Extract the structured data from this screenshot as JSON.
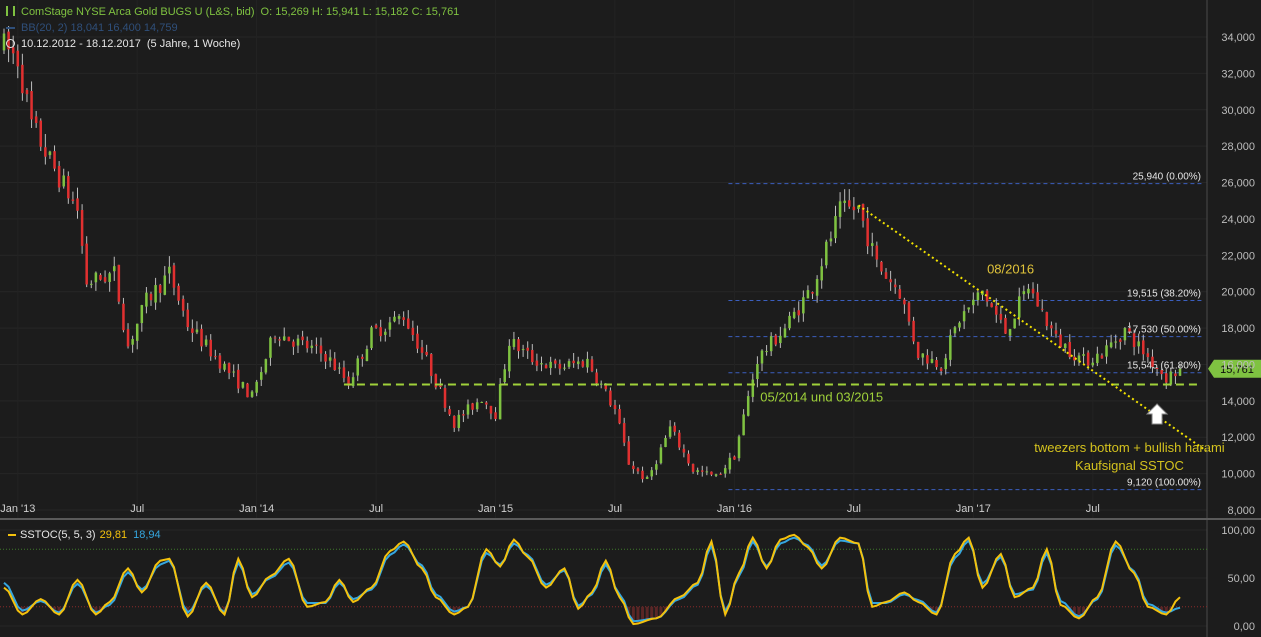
{
  "header": {
    "instrument": "ComStage NYSE Arca Gold BUGS U (L&S, bid)",
    "ohlc": "O: 15,269  H: 15,941  L: 15,182  C: 15,761",
    "bb": "BB(20, 2)  18,041  16,400  14,759",
    "range": "10.12.2012 - 18.12.2017",
    "period": "(5 Jahre, 1 Woche)"
  },
  "indicator": {
    "name": "SSTOC(5, 5, 3)",
    "k_value": "29,81",
    "d_value": "18,94",
    "levels": [
      80,
      20
    ],
    "ytick_labels": [
      "100,00",
      "50,00",
      "0,00"
    ]
  },
  "colors": {
    "bg": "#1c1c1c",
    "up": "#7fc241",
    "down": "#e03030",
    "fib": "#3b5fbf",
    "support": "#9fd13a",
    "trend": "#f2e200",
    "k_line": "#f4c20d",
    "d_line": "#35a7e0",
    "price_tag": "#7fc241"
  },
  "icons": [
    "bars-icon",
    "line-icon",
    "clock-icon",
    "up-arrow-icon"
  ],
  "chart_data": {
    "type": "candlestick",
    "ylim": [
      8000,
      35600
    ],
    "yticks": [
      8000,
      10000,
      12000,
      14000,
      16000,
      18000,
      20000,
      22000,
      24000,
      26000,
      28000,
      30000,
      32000,
      34000
    ],
    "ytick_labels": [
      "8,000",
      "10,000",
      "12,000",
      "14,000",
      "16,000",
      "18,000",
      "20,000",
      "22,000",
      "24,000",
      "26,000",
      "28,000",
      "30,000",
      "32,000",
      "34,000"
    ],
    "xticks": [
      {
        "label": "Jan '13",
        "week": 3
      },
      {
        "label": "Jul",
        "week": 29
      },
      {
        "label": "Jan '14",
        "week": 55
      },
      {
        "label": "Jul",
        "week": 81
      },
      {
        "label": "Jan '15",
        "week": 107
      },
      {
        "label": "Jul",
        "week": 133
      },
      {
        "label": "Jan '16",
        "week": 159
      },
      {
        "label": "Jul",
        "week": 185
      },
      {
        "label": "Jan '17",
        "week": 211
      },
      {
        "label": "Jul",
        "week": 237
      }
    ],
    "weeks_total": 262,
    "path": [
      [
        0,
        33500
      ],
      [
        3,
        32800
      ],
      [
        6,
        29200
      ],
      [
        10,
        27200
      ],
      [
        16,
        24500
      ],
      [
        18,
        20500
      ],
      [
        24,
        21000
      ],
      [
        27,
        17000
      ],
      [
        31,
        19500
      ],
      [
        36,
        21000
      ],
      [
        40,
        18200
      ],
      [
        44,
        17000
      ],
      [
        50,
        15300
      ],
      [
        54,
        14200
      ],
      [
        59,
        17800
      ],
      [
        64,
        17200
      ],
      [
        70,
        16500
      ],
      [
        75,
        15000
      ],
      [
        80,
        17700
      ],
      [
        87,
        18700
      ],
      [
        92,
        16200
      ],
      [
        98,
        12800
      ],
      [
        104,
        14200
      ],
      [
        107,
        13300
      ],
      [
        110,
        17300
      ],
      [
        115,
        16300
      ],
      [
        120,
        15800
      ],
      [
        127,
        16200
      ],
      [
        133,
        13500
      ],
      [
        136,
        10600
      ],
      [
        140,
        9600
      ],
      [
        145,
        12500
      ],
      [
        150,
        10200
      ],
      [
        155,
        9800
      ],
      [
        159,
        11000
      ],
      [
        164,
        16300
      ],
      [
        170,
        18000
      ],
      [
        176,
        20300
      ],
      [
        182,
        24400
      ],
      [
        186,
        24600
      ],
      [
        190,
        21500
      ],
      [
        195,
        20000
      ],
      [
        199,
        16600
      ],
      [
        204,
        16000
      ],
      [
        208,
        18500
      ],
      [
        213,
        20000
      ],
      [
        218,
        17800
      ],
      [
        223,
        20300
      ],
      [
        229,
        17400
      ],
      [
        235,
        16200
      ],
      [
        239,
        16600
      ],
      [
        244,
        17900
      ],
      [
        249,
        16400
      ],
      [
        253,
        15300
      ],
      [
        256,
        15700
      ]
    ],
    "last_close": 15761,
    "last_close_label": "15,761",
    "fib_levels": [
      {
        "value": 25940,
        "label": "25,940 (0.00%)"
      },
      {
        "value": 19515,
        "label": "19,515 (38.20%)"
      },
      {
        "value": 17530,
        "label": "17,530 (50.00%)"
      },
      {
        "value": 15545,
        "label": "15,545 (61.80%)"
      },
      {
        "value": 9120,
        "label": "9,120 (100.00%)"
      }
    ],
    "fib_start_week": 159,
    "support": {
      "value": 14900,
      "from_week": 74,
      "to_week": 260,
      "label": "05/2014 und 03/2015"
    },
    "trendline": {
      "from": [
        186,
        24750
      ],
      "to": [
        262,
        11200
      ],
      "label": "08/2016"
    },
    "annotations": [
      "tweezers bottom + bullish harami",
      "Kaufsignal SSTOC"
    ],
    "sstoc": {
      "k": [
        [
          0,
          40
        ],
        [
          4,
          12
        ],
        [
          8,
          28
        ],
        [
          12,
          12
        ],
        [
          16,
          48
        ],
        [
          20,
          12
        ],
        [
          23,
          25
        ],
        [
          27,
          60
        ],
        [
          30,
          35
        ],
        [
          34,
          68
        ],
        [
          36,
          70
        ],
        [
          40,
          10
        ],
        [
          44,
          45
        ],
        [
          48,
          12
        ],
        [
          51,
          70
        ],
        [
          54,
          30
        ],
        [
          58,
          52
        ],
        [
          62,
          70
        ],
        [
          66,
          20
        ],
        [
          70,
          25
        ],
        [
          73,
          48
        ],
        [
          76,
          25
        ],
        [
          80,
          40
        ],
        [
          84,
          78
        ],
        [
          87,
          88
        ],
        [
          91,
          60
        ],
        [
          94,
          30
        ],
        [
          98,
          12
        ],
        [
          101,
          20
        ],
        [
          105,
          80
        ],
        [
          108,
          62
        ],
        [
          111,
          90
        ],
        [
          114,
          72
        ],
        [
          118,
          40
        ],
        [
          122,
          60
        ],
        [
          125,
          18
        ],
        [
          128,
          35
        ],
        [
          131,
          68
        ],
        [
          134,
          30
        ],
        [
          137,
          2
        ],
        [
          142,
          8
        ],
        [
          147,
          30
        ],
        [
          151,
          45
        ],
        [
          154,
          88
        ],
        [
          157,
          12
        ],
        [
          160,
          55
        ],
        [
          163,
          92
        ],
        [
          166,
          60
        ],
        [
          169,
          90
        ],
        [
          172,
          95
        ],
        [
          175,
          82
        ],
        [
          178,
          60
        ],
        [
          182,
          92
        ],
        [
          186,
          86
        ],
        [
          189,
          20
        ],
        [
          192,
          25
        ],
        [
          196,
          35
        ],
        [
          199,
          25
        ],
        [
          203,
          12
        ],
        [
          207,
          75
        ],
        [
          210,
          92
        ],
        [
          213,
          40
        ],
        [
          217,
          75
        ],
        [
          220,
          30
        ],
        [
          224,
          40
        ],
        [
          227,
          80
        ],
        [
          230,
          22
        ],
        [
          234,
          8
        ],
        [
          238,
          30
        ],
        [
          242,
          88
        ],
        [
          246,
          55
        ],
        [
          249,
          20
        ],
        [
          253,
          12
        ],
        [
          256,
          30
        ]
      ],
      "d": [
        [
          0,
          45
        ],
        [
          4,
          16
        ],
        [
          8,
          26
        ],
        [
          12,
          14
        ],
        [
          16,
          44
        ],
        [
          20,
          14
        ],
        [
          23,
          22
        ],
        [
          27,
          56
        ],
        [
          30,
          38
        ],
        [
          34,
          64
        ],
        [
          36,
          68
        ],
        [
          40,
          14
        ],
        [
          44,
          42
        ],
        [
          48,
          14
        ],
        [
          51,
          66
        ],
        [
          54,
          33
        ],
        [
          58,
          50
        ],
        [
          62,
          66
        ],
        [
          66,
          24
        ],
        [
          70,
          24
        ],
        [
          73,
          45
        ],
        [
          76,
          28
        ],
        [
          80,
          38
        ],
        [
          84,
          74
        ],
        [
          87,
          85
        ],
        [
          91,
          63
        ],
        [
          94,
          33
        ],
        [
          98,
          15
        ],
        [
          101,
          20
        ],
        [
          105,
          76
        ],
        [
          108,
          64
        ],
        [
          111,
          86
        ],
        [
          114,
          74
        ],
        [
          118,
          43
        ],
        [
          122,
          58
        ],
        [
          125,
          21
        ],
        [
          128,
          33
        ],
        [
          131,
          64
        ],
        [
          134,
          33
        ],
        [
          137,
          5
        ],
        [
          142,
          8
        ],
        [
          147,
          28
        ],
        [
          151,
          43
        ],
        [
          154,
          84
        ],
        [
          157,
          15
        ],
        [
          160,
          52
        ],
        [
          163,
          88
        ],
        [
          166,
          62
        ],
        [
          169,
          86
        ],
        [
          172,
          92
        ],
        [
          175,
          84
        ],
        [
          178,
          63
        ],
        [
          182,
          89
        ],
        [
          186,
          86
        ],
        [
          189,
          24
        ],
        [
          192,
          24
        ],
        [
          196,
          33
        ],
        [
          199,
          27
        ],
        [
          203,
          14
        ],
        [
          207,
          71
        ],
        [
          210,
          89
        ],
        [
          213,
          44
        ],
        [
          217,
          72
        ],
        [
          220,
          33
        ],
        [
          224,
          38
        ],
        [
          227,
          76
        ],
        [
          230,
          26
        ],
        [
          234,
          10
        ],
        [
          238,
          28
        ],
        [
          242,
          84
        ],
        [
          246,
          57
        ],
        [
          249,
          23
        ],
        [
          253,
          14
        ],
        [
          256,
          19
        ]
      ]
    }
  }
}
